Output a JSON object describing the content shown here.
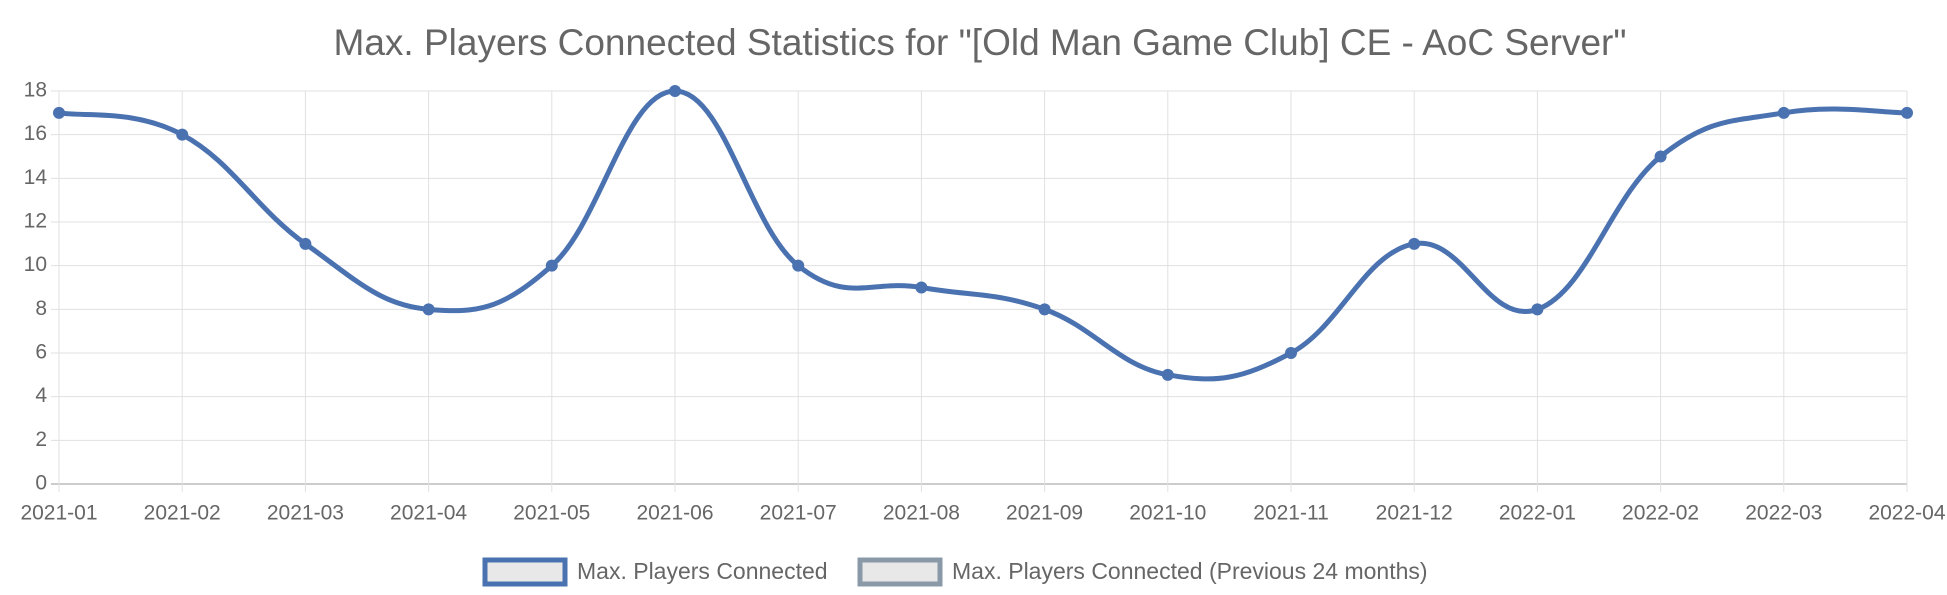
{
  "chart_data": {
    "type": "line",
    "title": "Max. Players Connected Statistics for \"[Old Man Game Club] CE - AoC Server\"",
    "x": [
      "2021-01",
      "2021-02",
      "2021-03",
      "2021-04",
      "2021-05",
      "2021-06",
      "2021-07",
      "2021-08",
      "2021-09",
      "2021-10",
      "2021-11",
      "2021-12",
      "2022-01",
      "2022-02",
      "2022-03",
      "2022-04"
    ],
    "series": [
      {
        "name": "Max. Players Connected",
        "color": "#4a72b0",
        "values": [
          17,
          16,
          11,
          8,
          10,
          18,
          10,
          9,
          8,
          5,
          6,
          11,
          8,
          15,
          17,
          17
        ]
      },
      {
        "name": "Max. Players Connected (Previous 24 months)",
        "color": "#8a99a8",
        "values": [
          null,
          null,
          null,
          null,
          null,
          null,
          null,
          null,
          null,
          null,
          null,
          null,
          null,
          null,
          null,
          null
        ]
      }
    ],
    "ylim": [
      0,
      18
    ],
    "yticks": [
      0,
      2,
      4,
      6,
      8,
      10,
      12,
      14,
      16,
      18
    ],
    "grid": true
  }
}
